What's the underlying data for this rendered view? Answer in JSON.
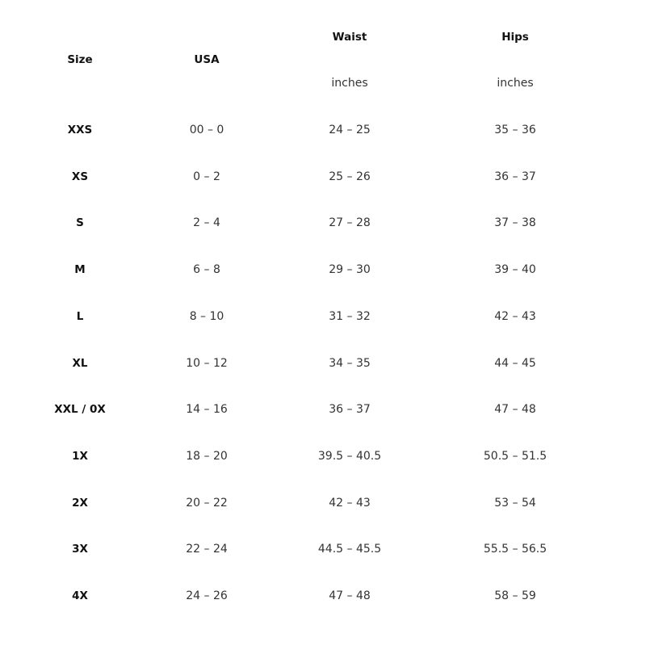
{
  "headers": {
    "size": "Size",
    "usa": "USA",
    "waist": "Waist",
    "hips": "Hips",
    "waist_unit": "inches",
    "hips_unit": "inches"
  },
  "rows": [
    [
      "XXS",
      "00 – 0",
      "24 – 25",
      "35 – 36"
    ],
    [
      "XS",
      "0 – 2",
      "25 – 26",
      "36 – 37"
    ],
    [
      "S",
      "2 – 4",
      "27 – 28",
      "37 – 38"
    ],
    [
      "M",
      "6 – 8",
      "29 – 30",
      "39 – 40"
    ],
    [
      "L",
      "8 – 10",
      "31 – 32",
      "42 – 43"
    ],
    [
      "XL",
      "10 – 12",
      "34 – 35",
      "44 – 45"
    ],
    [
      "XXL / 0X",
      "14 – 16",
      "36 – 37",
      "47 – 48"
    ],
    [
      "1X",
      "18 – 20",
      "39.5 – 40.5",
      "50.5 – 51.5"
    ],
    [
      "2X",
      "20 – 22",
      "42 – 43",
      "53 – 54"
    ],
    [
      "3X",
      "22 – 24",
      "44.5 – 45.5",
      "55.5 – 56.5"
    ],
    [
      "4X",
      "24 – 26",
      "47 – 48",
      "58 – 59"
    ]
  ]
}
